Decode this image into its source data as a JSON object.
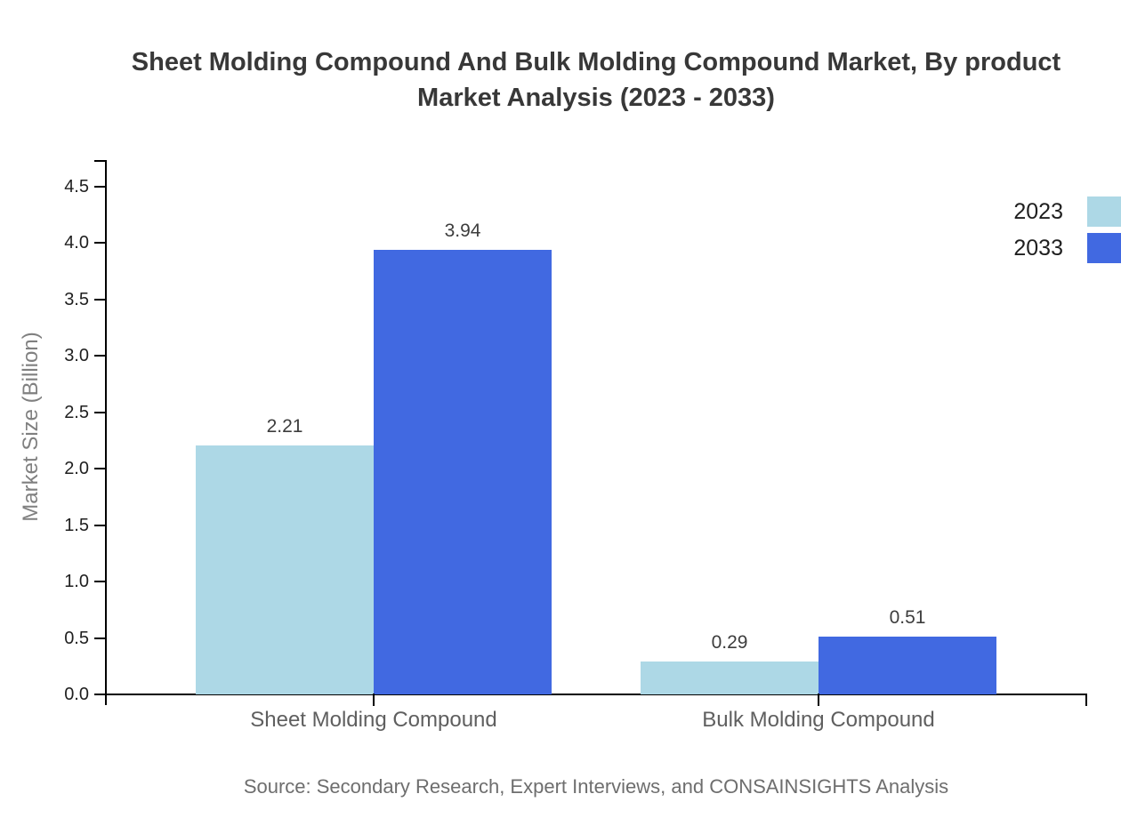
{
  "title": {
    "line1": "Sheet Molding Compound And Bulk Molding Compound Market, By product",
    "line2": "Market Analysis (2023 - 2033)"
  },
  "source_note": "Source: Secondary Research, Expert Interviews, and CONSAINSIGHTS Analysis",
  "colors": {
    "series_2023": "#ADD8E6",
    "series_2033": "#4169E1",
    "axis": "#000000",
    "title_text": "#383838",
    "tick_text": "#1f1f1f",
    "category_text": "#5f5f5f",
    "axis_title_text": "#808080",
    "source_text": "#6e6e6e"
  },
  "chart_data": {
    "type": "bar",
    "title": "Sheet Molding Compound And Bulk Molding Compound Market, By product Market Analysis (2023 - 2033)",
    "categories": [
      "Sheet Molding Compound",
      "Bulk Molding Compound"
    ],
    "series": [
      {
        "name": "2023",
        "color": "#ADD8E6",
        "values": [
          2.21,
          0.29
        ]
      },
      {
        "name": "2033",
        "color": "#4169E1",
        "values": [
          3.94,
          0.51
        ]
      }
    ],
    "xlabel": "",
    "ylabel": "Market Size (Billion)",
    "ylim": [
      0,
      4.5
    ],
    "yticks": [
      0.0,
      0.5,
      1.0,
      1.5,
      2.0,
      2.5,
      3.0,
      3.5,
      4.0,
      4.5
    ],
    "value_label_format": "2dp",
    "grid": false,
    "legend_position": "upper right"
  }
}
